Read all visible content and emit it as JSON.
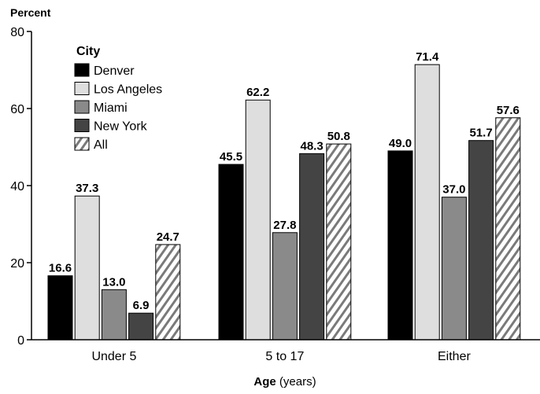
{
  "chart_data": {
    "type": "bar",
    "ylabel": "Percent",
    "xlabel_main": "Age",
    "xlabel_unit": " (years)",
    "ylim": [
      0,
      80
    ],
    "yticks": [
      0,
      20,
      40,
      60,
      80
    ],
    "categories": [
      "Under 5",
      "5 to 17",
      "Either"
    ],
    "legend_title": "City",
    "legend_position": "top-left",
    "series": [
      {
        "name": "Denver",
        "values": [
          16.6,
          45.5,
          49.0
        ],
        "labels": [
          "16.6",
          "45.5",
          "49.0"
        ],
        "color": "#000000",
        "pattern": "solid"
      },
      {
        "name": "Los Angeles",
        "values": [
          37.3,
          62.2,
          71.4
        ],
        "labels": [
          "37.3",
          "62.2",
          "71.4"
        ],
        "color": "#dedede",
        "pattern": "solid"
      },
      {
        "name": "Miami",
        "values": [
          13.0,
          27.8,
          37.0
        ],
        "labels": [
          "13.0",
          "27.8",
          "37.0"
        ],
        "color": "#8a8a8a",
        "pattern": "solid"
      },
      {
        "name": "New York",
        "values": [
          6.9,
          48.3,
          51.7
        ],
        "labels": [
          "6.9",
          "48.3",
          "51.7"
        ],
        "color": "#444444",
        "pattern": "solid"
      },
      {
        "name": "All",
        "values": [
          24.7,
          50.8,
          57.6
        ],
        "labels": [
          "24.7",
          "50.8",
          "57.6"
        ],
        "color": "#555555",
        "pattern": "hatch"
      }
    ]
  }
}
